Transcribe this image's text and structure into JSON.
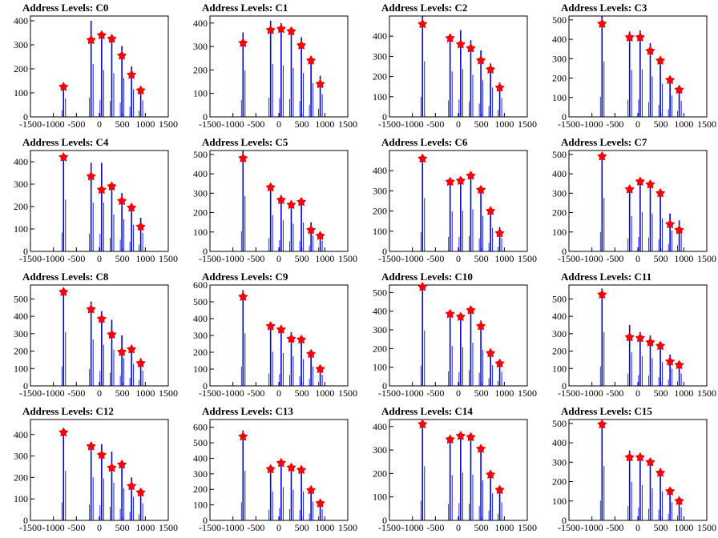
{
  "chart_data": [
    {
      "type": "bar",
      "title": "Address Levels: C0",
      "xlim": [
        -1500,
        1500
      ],
      "ylim": [
        0,
        420
      ],
      "yticks": [
        0,
        100,
        200,
        300,
        400
      ],
      "xticks": [
        -1500,
        -1000,
        -500,
        0,
        500,
        1000,
        1500
      ],
      "peaks": [
        {
          "x": -780,
          "y": 140,
          "marker": 125
        },
        {
          "x": -180,
          "y": 400,
          "marker": 320
        },
        {
          "x": 50,
          "y": 355,
          "marker": 340
        },
        {
          "x": 270,
          "y": 330,
          "marker": 325
        },
        {
          "x": 490,
          "y": 295,
          "marker": 255
        },
        {
          "x": 700,
          "y": 210,
          "marker": 175
        },
        {
          "x": 900,
          "y": 125,
          "marker": 110
        }
      ]
    },
    {
      "type": "bar",
      "title": "Address Levels: C1",
      "xlim": [
        -1500,
        1500
      ],
      "ylim": [
        0,
        430
      ],
      "yticks": [
        0,
        100,
        200,
        300,
        400
      ],
      "xticks": [
        -1500,
        -1000,
        -500,
        0,
        500,
        1000,
        1500
      ],
      "peaks": [
        {
          "x": -780,
          "y": 360,
          "marker": 315
        },
        {
          "x": -180,
          "y": 410,
          "marker": 370
        },
        {
          "x": 50,
          "y": 400,
          "marker": 375
        },
        {
          "x": 270,
          "y": 380,
          "marker": 365
        },
        {
          "x": 490,
          "y": 340,
          "marker": 305
        },
        {
          "x": 700,
          "y": 260,
          "marker": 240
        },
        {
          "x": 900,
          "y": 175,
          "marker": 140
        }
      ]
    },
    {
      "type": "bar",
      "title": "Address Levels: C2",
      "xlim": [
        -1500,
        1500
      ],
      "ylim": [
        0,
        500
      ],
      "yticks": [
        0,
        100,
        200,
        300,
        400
      ],
      "xticks": [
        -1500,
        -1000,
        -500,
        0,
        500,
        1000,
        1500
      ],
      "peaks": [
        {
          "x": -780,
          "y": 500,
          "marker": 460
        },
        {
          "x": -180,
          "y": 410,
          "marker": 390
        },
        {
          "x": 50,
          "y": 430,
          "marker": 360
        },
        {
          "x": 270,
          "y": 380,
          "marker": 340
        },
        {
          "x": 490,
          "y": 330,
          "marker": 280
        },
        {
          "x": 700,
          "y": 265,
          "marker": 235
        },
        {
          "x": 900,
          "y": 170,
          "marker": 145
        }
      ]
    },
    {
      "type": "bar",
      "title": "Address Levels: C3",
      "xlim": [
        -1500,
        1500
      ],
      "ylim": [
        0,
        520
      ],
      "yticks": [
        0,
        100,
        200,
        300,
        400,
        500
      ],
      "xticks": [
        -1500,
        -1000,
        -500,
        0,
        500,
        1000,
        1500
      ],
      "peaks": [
        {
          "x": -780,
          "y": 520,
          "marker": 480
        },
        {
          "x": -180,
          "y": 440,
          "marker": 410
        },
        {
          "x": 50,
          "y": 445,
          "marker": 410
        },
        {
          "x": 270,
          "y": 380,
          "marker": 340
        },
        {
          "x": 490,
          "y": 310,
          "marker": 290
        },
        {
          "x": 700,
          "y": 200,
          "marker": 190
        },
        {
          "x": 900,
          "y": 150,
          "marker": 140
        }
      ]
    },
    {
      "type": "bar",
      "title": "Address Levels: C4",
      "xlim": [
        -1500,
        1500
      ],
      "ylim": [
        0,
        450
      ],
      "yticks": [
        0,
        100,
        200,
        300,
        400
      ],
      "xticks": [
        -1500,
        -1000,
        -500,
        0,
        500,
        1000,
        1500
      ],
      "peaks": [
        {
          "x": -780,
          "y": 420,
          "marker": 420
        },
        {
          "x": -180,
          "y": 395,
          "marker": 335
        },
        {
          "x": 50,
          "y": 395,
          "marker": 275
        },
        {
          "x": 270,
          "y": 300,
          "marker": 290
        },
        {
          "x": 490,
          "y": 260,
          "marker": 225
        },
        {
          "x": 700,
          "y": 215,
          "marker": 195
        },
        {
          "x": 900,
          "y": 150,
          "marker": 110
        }
      ]
    },
    {
      "type": "bar",
      "title": "Address Levels: C5",
      "xlim": [
        -1500,
        1500
      ],
      "ylim": [
        0,
        520
      ],
      "yticks": [
        0,
        100,
        200,
        300,
        400,
        500
      ],
      "xticks": [
        -1500,
        -1000,
        -500,
        0,
        500,
        1000,
        1500
      ],
      "peaks": [
        {
          "x": -780,
          "y": 520,
          "marker": 480
        },
        {
          "x": -180,
          "y": 340,
          "marker": 330
        },
        {
          "x": 50,
          "y": 290,
          "marker": 265
        },
        {
          "x": 270,
          "y": 260,
          "marker": 240
        },
        {
          "x": 490,
          "y": 270,
          "marker": 255
        },
        {
          "x": 700,
          "y": 150,
          "marker": 110
        },
        {
          "x": 900,
          "y": 100,
          "marker": 80
        }
      ]
    },
    {
      "type": "bar",
      "title": "Address Levels: C6",
      "xlim": [
        -1500,
        1500
      ],
      "ylim": [
        0,
        500
      ],
      "yticks": [
        0,
        100,
        200,
        300,
        400
      ],
      "xticks": [
        -1500,
        -1000,
        -500,
        0,
        500,
        1000,
        1500
      ],
      "peaks": [
        {
          "x": -780,
          "y": 480,
          "marker": 460
        },
        {
          "x": -180,
          "y": 360,
          "marker": 345
        },
        {
          "x": 50,
          "y": 365,
          "marker": 350
        },
        {
          "x": 270,
          "y": 380,
          "marker": 375
        },
        {
          "x": 490,
          "y": 320,
          "marker": 305
        },
        {
          "x": 700,
          "y": 210,
          "marker": 200
        },
        {
          "x": 900,
          "y": 120,
          "marker": 90
        }
      ]
    },
    {
      "type": "bar",
      "title": "Address Levels: C7",
      "xlim": [
        -1500,
        1500
      ],
      "ylim": [
        0,
        520
      ],
      "yticks": [
        0,
        100,
        200,
        300,
        400,
        500
      ],
      "xticks": [
        -1500,
        -1000,
        -500,
        0,
        500,
        1000,
        1500
      ],
      "peaks": [
        {
          "x": -780,
          "y": 500,
          "marker": 490
        },
        {
          "x": -180,
          "y": 330,
          "marker": 320
        },
        {
          "x": 50,
          "y": 370,
          "marker": 360
        },
        {
          "x": 270,
          "y": 355,
          "marker": 345
        },
        {
          "x": 490,
          "y": 310,
          "marker": 300
        },
        {
          "x": 700,
          "y": 195,
          "marker": 140
        },
        {
          "x": 900,
          "y": 160,
          "marker": 110
        }
      ]
    },
    {
      "type": "bar",
      "title": "Address Levels: C8",
      "xlim": [
        -1500,
        1500
      ],
      "ylim": [
        0,
        580
      ],
      "yticks": [
        0,
        100,
        200,
        300,
        400,
        500
      ],
      "xticks": [
        -1500,
        -1000,
        -500,
        0,
        500,
        1000,
        1500
      ],
      "peaks": [
        {
          "x": -780,
          "y": 560,
          "marker": 540
        },
        {
          "x": -180,
          "y": 485,
          "marker": 440
        },
        {
          "x": 50,
          "y": 430,
          "marker": 385
        },
        {
          "x": 270,
          "y": 380,
          "marker": 295
        },
        {
          "x": 490,
          "y": 290,
          "marker": 195
        },
        {
          "x": 700,
          "y": 230,
          "marker": 210
        },
        {
          "x": 900,
          "y": 160,
          "marker": 130
        }
      ]
    },
    {
      "type": "bar",
      "title": "Address Levels: C9",
      "xlim": [
        -1500,
        1500
      ],
      "ylim": [
        0,
        600
      ],
      "yticks": [
        0,
        100,
        200,
        300,
        400,
        500,
        600
      ],
      "xticks": [
        -1500,
        -1000,
        -500,
        0,
        500,
        1000,
        1500
      ],
      "peaks": [
        {
          "x": -780,
          "y": 570,
          "marker": 530
        },
        {
          "x": -180,
          "y": 370,
          "marker": 355
        },
        {
          "x": 50,
          "y": 355,
          "marker": 335
        },
        {
          "x": 270,
          "y": 320,
          "marker": 280
        },
        {
          "x": 490,
          "y": 290,
          "marker": 275
        },
        {
          "x": 700,
          "y": 210,
          "marker": 190
        },
        {
          "x": 900,
          "y": 120,
          "marker": 100
        }
      ]
    },
    {
      "type": "bar",
      "title": "Address Levels: C10",
      "xlim": [
        -1500,
        1500
      ],
      "ylim": [
        0,
        540
      ],
      "yticks": [
        0,
        100,
        200,
        300,
        400,
        500
      ],
      "xticks": [
        -1500,
        -1000,
        -500,
        0,
        500,
        1000,
        1500
      ],
      "peaks": [
        {
          "x": -780,
          "y": 540,
          "marker": 530
        },
        {
          "x": -180,
          "y": 390,
          "marker": 385
        },
        {
          "x": 50,
          "y": 375,
          "marker": 370
        },
        {
          "x": 270,
          "y": 420,
          "marker": 405
        },
        {
          "x": 490,
          "y": 350,
          "marker": 320
        },
        {
          "x": 700,
          "y": 200,
          "marker": 175
        },
        {
          "x": 900,
          "y": 135,
          "marker": 120
        }
      ]
    },
    {
      "type": "bar",
      "title": "Address Levels: C11",
      "xlim": [
        -1500,
        1500
      ],
      "ylim": [
        0,
        580
      ],
      "yticks": [
        0,
        100,
        200,
        300,
        400,
        500
      ],
      "xticks": [
        -1500,
        -1000,
        -500,
        0,
        500,
        1000,
        1500
      ],
      "peaks": [
        {
          "x": -780,
          "y": 560,
          "marker": 525
        },
        {
          "x": -180,
          "y": 350,
          "marker": 280
        },
        {
          "x": 50,
          "y": 310,
          "marker": 275
        },
        {
          "x": 270,
          "y": 290,
          "marker": 250
        },
        {
          "x": 490,
          "y": 250,
          "marker": 230
        },
        {
          "x": 700,
          "y": 180,
          "marker": 140
        },
        {
          "x": 900,
          "y": 130,
          "marker": 120
        }
      ]
    },
    {
      "type": "bar",
      "title": "Address Levels: C12",
      "xlim": [
        -1500,
        1500
      ],
      "ylim": [
        0,
        470
      ],
      "yticks": [
        0,
        100,
        200,
        300,
        400
      ],
      "xticks": [
        -1500,
        -1000,
        -500,
        0,
        500,
        1000,
        1500
      ],
      "peaks": [
        {
          "x": -780,
          "y": 420,
          "marker": 410
        },
        {
          "x": -180,
          "y": 365,
          "marker": 345
        },
        {
          "x": 50,
          "y": 355,
          "marker": 305
        },
        {
          "x": 270,
          "y": 320,
          "marker": 245
        },
        {
          "x": 490,
          "y": 270,
          "marker": 260
        },
        {
          "x": 700,
          "y": 200,
          "marker": 160
        },
        {
          "x": 900,
          "y": 145,
          "marker": 130
        }
      ]
    },
    {
      "type": "bar",
      "title": "Address Levels: C13",
      "xlim": [
        -1500,
        1500
      ],
      "ylim": [
        0,
        650
      ],
      "yticks": [
        0,
        100,
        200,
        300,
        400,
        500,
        600
      ],
      "xticks": [
        -1500,
        -1000,
        -500,
        0,
        500,
        1000,
        1500
      ],
      "peaks": [
        {
          "x": -780,
          "y": 580,
          "marker": 540
        },
        {
          "x": -180,
          "y": 340,
          "marker": 330
        },
        {
          "x": 50,
          "y": 390,
          "marker": 370
        },
        {
          "x": 270,
          "y": 360,
          "marker": 340
        },
        {
          "x": 490,
          "y": 340,
          "marker": 325
        },
        {
          "x": 700,
          "y": 220,
          "marker": 195
        },
        {
          "x": 900,
          "y": 130,
          "marker": 110
        }
      ]
    },
    {
      "type": "bar",
      "title": "Address Levels: C14",
      "xlim": [
        -1500,
        1500
      ],
      "ylim": [
        0,
        430
      ],
      "yticks": [
        0,
        100,
        200,
        300,
        400
      ],
      "xticks": [
        -1500,
        -1000,
        -500,
        0,
        500,
        1000,
        1500
      ],
      "peaks": [
        {
          "x": -780,
          "y": 420,
          "marker": 410
        },
        {
          "x": -180,
          "y": 350,
          "marker": 345
        },
        {
          "x": 50,
          "y": 370,
          "marker": 360
        },
        {
          "x": 270,
          "y": 355,
          "marker": 355
        },
        {
          "x": 490,
          "y": 310,
          "marker": 305
        },
        {
          "x": 700,
          "y": 210,
          "marker": 195
        },
        {
          "x": 900,
          "y": 140,
          "marker": 130
        }
      ]
    },
    {
      "type": "bar",
      "title": "Address Levels: C15",
      "xlim": [
        -1500,
        1500
      ],
      "ylim": [
        0,
        520
      ],
      "yticks": [
        0,
        100,
        200,
        300,
        400,
        500
      ],
      "xticks": [
        -1500,
        -1000,
        -500,
        0,
        500,
        1000,
        1500
      ],
      "peaks": [
        {
          "x": -780,
          "y": 510,
          "marker": 495
        },
        {
          "x": -180,
          "y": 360,
          "marker": 325
        },
        {
          "x": 50,
          "y": 330,
          "marker": 325
        },
        {
          "x": 270,
          "y": 300,
          "marker": 300
        },
        {
          "x": 490,
          "y": 270,
          "marker": 245
        },
        {
          "x": 700,
          "y": 170,
          "marker": 150
        },
        {
          "x": 900,
          "y": 120,
          "marker": 100
        }
      ]
    }
  ]
}
